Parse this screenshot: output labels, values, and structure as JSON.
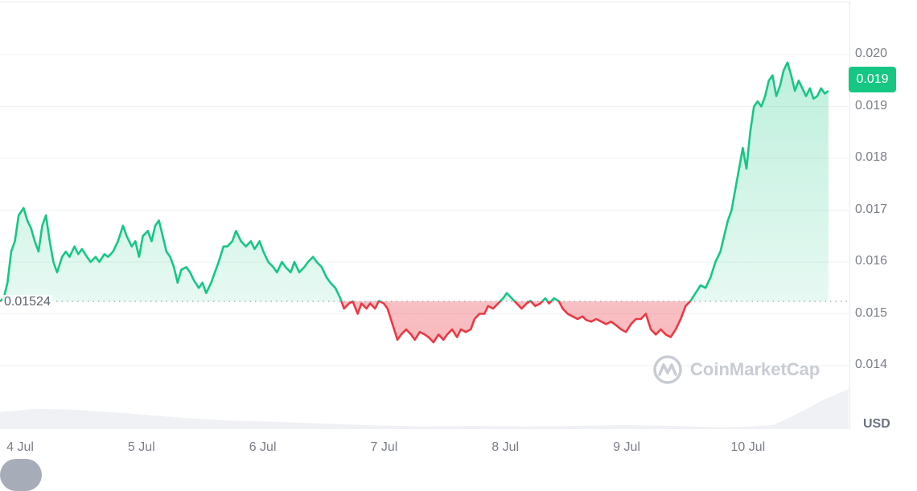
{
  "chart_data": {
    "type": "line",
    "title": "",
    "xlabel": "",
    "ylabel": "USD",
    "currency_label": "USD",
    "ylim": [
      0.0135,
      0.021
    ],
    "y_ticks": [
      "0.020",
      "0.019",
      "0.018",
      "0.017",
      "0.016",
      "0.015",
      "0.014"
    ],
    "x_ticks": [
      "4 Jul",
      "5 Jul",
      "6 Jul",
      "7 Jul",
      "8 Jul",
      "9 Jul",
      "10 Jul"
    ],
    "grid": "horizontal",
    "baseline": {
      "value": 0.01524,
      "label": "0.01524",
      "style": "dotted"
    },
    "current_price": {
      "value": 0.019,
      "label": "0.019"
    },
    "colors": {
      "up": "#16c784",
      "down": "#ea3943",
      "up_fill": "#16c784",
      "down_fill": "#ea3943",
      "volume": "#eff1f4",
      "badge": "#16c784"
    },
    "series": [
      {
        "name": "Price",
        "x_day_offset": [
          0.0,
          0.03,
          0.06,
          0.09,
          0.12,
          0.15,
          0.19,
          0.22,
          0.25,
          0.28,
          0.31,
          0.34,
          0.37,
          0.4,
          0.43,
          0.46,
          0.5,
          0.53,
          0.56,
          0.6,
          0.63,
          0.66,
          0.7,
          0.73,
          0.77,
          0.8,
          0.84,
          0.87,
          0.91,
          0.95,
          0.99,
          1.02,
          1.06,
          1.09,
          1.12,
          1.15,
          1.19,
          1.22,
          1.25,
          1.28,
          1.31,
          1.34,
          1.37,
          1.4,
          1.43,
          1.46,
          1.5,
          1.53,
          1.56,
          1.6,
          1.63,
          1.66,
          1.7,
          1.73,
          1.76,
          1.8,
          1.83,
          1.87,
          1.9,
          1.94,
          1.98,
          2.02,
          2.05,
          2.09,
          2.12,
          2.16,
          2.2,
          2.23,
          2.27,
          2.3,
          2.34,
          2.37,
          2.41,
          2.45,
          2.48,
          2.52,
          2.55,
          2.59,
          2.63,
          2.66,
          2.7,
          2.74,
          2.77,
          2.81,
          2.84,
          2.88,
          2.91,
          2.95,
          2.98,
          3.02,
          3.05,
          3.09,
          3.12,
          3.16,
          3.2,
          3.23,
          3.27,
          3.31,
          3.34,
          3.38,
          3.42,
          3.45,
          3.49,
          3.53,
          3.57,
          3.6,
          3.64,
          3.68,
          3.71,
          3.75,
          3.79,
          3.82,
          3.86,
          3.9,
          3.93,
          3.97,
          4.01,
          4.05,
          4.08,
          4.12,
          4.16,
          4.2,
          4.24,
          4.27,
          4.31,
          4.35,
          4.39,
          4.42,
          4.46,
          4.5,
          4.53,
          4.57,
          4.61,
          4.65,
          4.69,
          4.72,
          4.76,
          4.8,
          4.84,
          4.88,
          4.92,
          4.96,
          5.0,
          5.04,
          5.08,
          5.12,
          5.16,
          5.2,
          5.24,
          5.28,
          5.32,
          5.36,
          5.4,
          5.44,
          5.48,
          5.52,
          5.56,
          5.6,
          5.64,
          5.68,
          5.72,
          5.76,
          5.8,
          5.83,
          5.86,
          5.89,
          5.92,
          5.95,
          5.98,
          6.01,
          6.04,
          6.07,
          6.1,
          6.13,
          6.16,
          6.19,
          6.22,
          6.25,
          6.28,
          6.31,
          6.34,
          6.37,
          6.4,
          6.43,
          6.46,
          6.49,
          6.52,
          6.55,
          6.58,
          6.61,
          6.64,
          6.67,
          6.7,
          6.73,
          6.76,
          6.8
        ],
        "values": [
          0.01524,
          0.0153,
          0.0156,
          0.0162,
          0.0164,
          0.0169,
          0.01704,
          0.0168,
          0.01665,
          0.0164,
          0.0162,
          0.0167,
          0.0169,
          0.0164,
          0.016,
          0.0158,
          0.0161,
          0.0162,
          0.0161,
          0.0163,
          0.01615,
          0.01625,
          0.0161,
          0.016,
          0.0161,
          0.016,
          0.01615,
          0.0161,
          0.0162,
          0.0164,
          0.0167,
          0.0165,
          0.0163,
          0.0164,
          0.0161,
          0.0165,
          0.0166,
          0.0164,
          0.0167,
          0.0168,
          0.0165,
          0.0162,
          0.0161,
          0.0159,
          0.0156,
          0.01585,
          0.0159,
          0.0158,
          0.01565,
          0.0155,
          0.0156,
          0.0154,
          0.0156,
          0.0158,
          0.016,
          0.0163,
          0.0163,
          0.0164,
          0.0166,
          0.0164,
          0.0163,
          0.0164,
          0.01625,
          0.0164,
          0.0162,
          0.016,
          0.0159,
          0.0158,
          0.016,
          0.0159,
          0.0158,
          0.016,
          0.0158,
          0.0159,
          0.016,
          0.0161,
          0.016,
          0.0159,
          0.0157,
          0.0156,
          0.0155,
          0.0153,
          0.0151,
          0.0152,
          0.01524,
          0.015,
          0.0152,
          0.0151,
          0.0152,
          0.0151,
          0.01525,
          0.0152,
          0.0151,
          0.0148,
          0.0145,
          0.0146,
          0.0147,
          0.0146,
          0.0145,
          0.01465,
          0.0146,
          0.01455,
          0.01445,
          0.0146,
          0.0145,
          0.0146,
          0.0147,
          0.01455,
          0.0147,
          0.01465,
          0.0147,
          0.0149,
          0.015,
          0.015,
          0.01515,
          0.0151,
          0.0152,
          0.0153,
          0.0154,
          0.0153,
          0.0152,
          0.0151,
          0.0152,
          0.01525,
          0.01515,
          0.0152,
          0.0153,
          0.0152,
          0.0153,
          0.01524,
          0.0151,
          0.015,
          0.01495,
          0.0149,
          0.01495,
          0.01488,
          0.01485,
          0.0149,
          0.01485,
          0.0148,
          0.01485,
          0.01478,
          0.0147,
          0.01465,
          0.0148,
          0.0149,
          0.0149,
          0.015,
          0.0147,
          0.0146,
          0.0147,
          0.0146,
          0.01455,
          0.0147,
          0.0149,
          0.01515,
          0.01525,
          0.0154,
          0.01555,
          0.0155,
          0.0157,
          0.016,
          0.0162,
          0.0165,
          0.0168,
          0.017,
          0.0174,
          0.0178,
          0.0182,
          0.0178,
          0.0185,
          0.019,
          0.0191,
          0.019,
          0.0192,
          0.0195,
          0.0196,
          0.0192,
          0.0194,
          0.0197,
          0.01985,
          0.0196,
          0.0193,
          0.0195,
          0.01935,
          0.0192,
          0.01935,
          0.01915,
          0.0192,
          0.01935,
          0.01925,
          0.0193
        ]
      },
      {
        "name": "Volume (relative)",
        "x_day_offset": [
          0.0,
          0.3,
          0.6,
          1.0,
          1.4,
          1.8,
          2.2,
          2.6,
          3.0,
          3.4,
          3.8,
          4.2,
          4.6,
          5.0,
          5.4,
          5.8,
          6.0,
          6.2,
          6.4,
          6.6,
          6.8
        ],
        "values": [
          0.32,
          0.38,
          0.36,
          0.3,
          0.22,
          0.16,
          0.14,
          0.1,
          0.07,
          0.05,
          0.06,
          0.05,
          0.06,
          0.08,
          0.06,
          0.03,
          0.05,
          0.08,
          0.3,
          0.55,
          0.75
        ]
      }
    ]
  },
  "watermark": {
    "text": "CoinMarketCap"
  },
  "axis": {
    "currency": "USD"
  }
}
